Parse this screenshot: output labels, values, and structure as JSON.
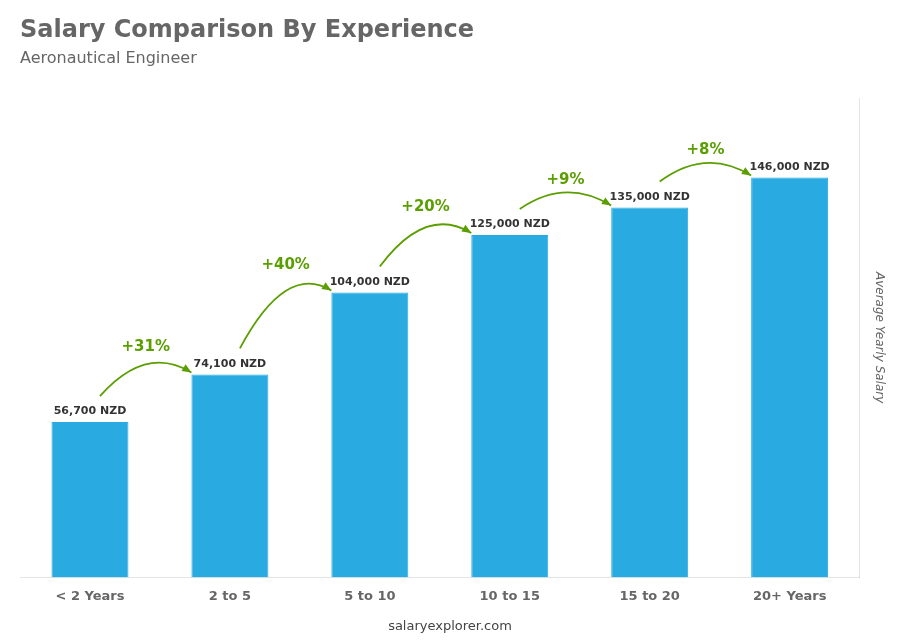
{
  "chart_data": {
    "type": "bar",
    "title": "Salary Comparison By Experience",
    "subtitle": "Aeronautical Engineer",
    "ylabel": "Average Yearly Salary",
    "footer": "salaryexplorer.com",
    "categories": [
      "< 2 Years",
      "2 to 5",
      "5 to 10",
      "10 to 15",
      "15 to 20",
      "20+ Years"
    ],
    "values": [
      56700,
      74100,
      104000,
      125000,
      135000,
      146000
    ],
    "value_labels": [
      "56,700 NZD",
      "74,100 NZD",
      "104,000 NZD",
      "125,000 NZD",
      "135,000 NZD",
      "146,000 NZD"
    ],
    "data_labels": true,
    "annotations": [
      "+31%",
      "+40%",
      "+20%",
      "+9%",
      "+8%"
    ],
    "color": "#29ABE2",
    "ylim": [
      0,
      175000
    ],
    "tick_labels": "x",
    "grid": false
  }
}
